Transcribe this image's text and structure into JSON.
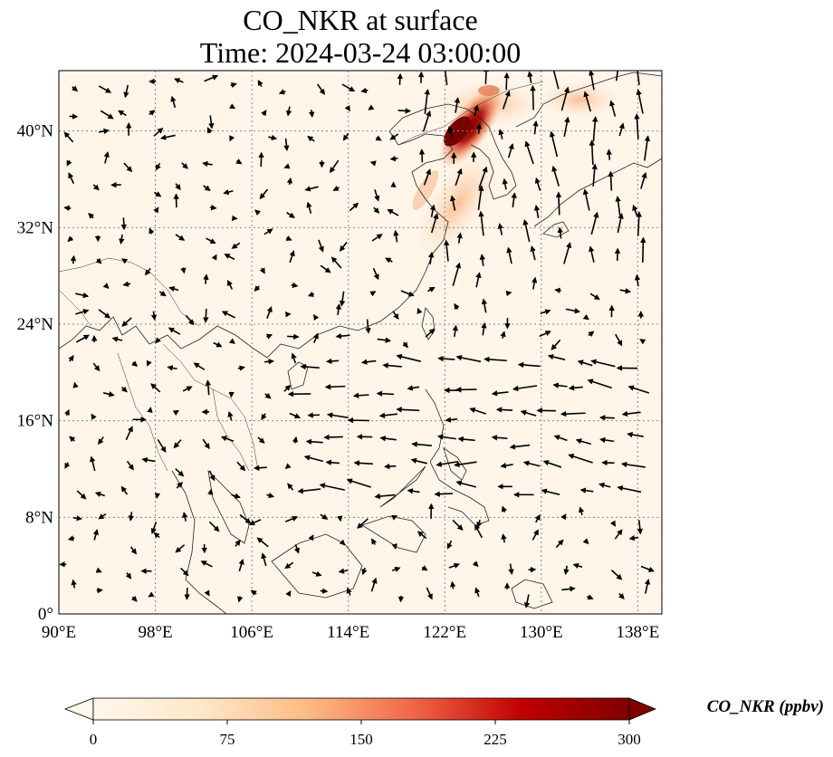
{
  "title": "CO_NKR at surface",
  "subtitle": "Time: 2024-03-24 03:00:00",
  "colors": {
    "background_field": "#fff5e9",
    "coast": "#222222",
    "grid": "#888888",
    "arrow": "#000000",
    "plume_low": "#fcd2a8",
    "plume_mid": "#e96c4a",
    "plume_high": "#9b0c0c",
    "plume_peak": "#6b0000"
  },
  "map": {
    "lon_ticks": [
      "90°E",
      "98°E",
      "106°E",
      "114°E",
      "122°E",
      "130°E",
      "138°E"
    ],
    "lat_ticks": [
      "0°",
      "8°N",
      "16°N",
      "24°N",
      "32°N",
      "40°N"
    ],
    "lon_values": [
      90,
      98,
      106,
      114,
      122,
      130,
      138
    ],
    "lat_values": [
      0,
      8,
      16,
      24,
      32,
      40
    ],
    "extent": {
      "lon_min": 90,
      "lon_max": 140,
      "lat_min": 0,
      "lat_max": 45
    }
  },
  "colorbar": {
    "label": "CO_NKR (ppbv)",
    "ticks": [
      "0",
      "75",
      "150",
      "225",
      "300"
    ],
    "tick_values": [
      0,
      75,
      150,
      225,
      300
    ],
    "min": 0,
    "max": 300,
    "extend": "both",
    "colormap": "OrRd"
  }
}
